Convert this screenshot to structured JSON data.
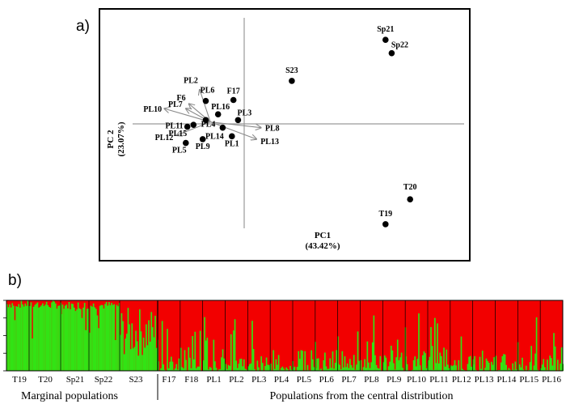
{
  "panel_a_label": "a)",
  "panel_b_label": "b)",
  "chart_data": [
    {
      "type": "scatter",
      "title": "",
      "xlabel": "PC1",
      "xlabel_pct": "(43.42%)",
      "ylabel": "PC 2",
      "ylabel_pct": "(23.07%)",
      "xlim": [
        -1.0,
        1.0
      ],
      "ylim": [
        -1.0,
        1.0
      ],
      "grid": false,
      "points": [
        {
          "label": "Sp21",
          "x": 0.92,
          "y": 0.88
        },
        {
          "label": "Sp22",
          "x": 0.96,
          "y": 0.74
        },
        {
          "label": "S23",
          "x": 0.31,
          "y": 0.45
        },
        {
          "label": "F17",
          "x": -0.07,
          "y": 0.25
        },
        {
          "label": "PL6",
          "x": -0.25,
          "y": 0.24
        },
        {
          "label": "PL16",
          "x": -0.17,
          "y": 0.1
        },
        {
          "label": "PL3",
          "x": -0.04,
          "y": 0.04
        },
        {
          "label": "PL4",
          "x": -0.25,
          "y": 0.04
        },
        {
          "label": "PL14",
          "x": -0.14,
          "y": -0.04
        },
        {
          "label": "PL1",
          "x": -0.08,
          "y": -0.13
        },
        {
          "label": "PL9",
          "x": -0.27,
          "y": -0.16
        },
        {
          "label": "PL5",
          "x": -0.38,
          "y": -0.2
        },
        {
          "label": "PL11",
          "x": -0.37,
          "y": -0.03
        },
        {
          "label": "PL15",
          "x": -0.33,
          "y": -0.01
        },
        {
          "label": "T20",
          "x": 1.08,
          "y": -0.79
        },
        {
          "label": "T19",
          "x": 0.92,
          "y": -1.05
        }
      ],
      "vectors": [
        {
          "label": "PL2",
          "x": -0.29,
          "y": 0.36
        },
        {
          "label": "F6",
          "x": -0.36,
          "y": 0.21
        },
        {
          "label": "PL7",
          "x": -0.38,
          "y": 0.16
        },
        {
          "label": "PL10",
          "x": -0.52,
          "y": 0.16
        },
        {
          "label": "PL12",
          "x": -0.44,
          "y": -0.12
        },
        {
          "label": "PL8",
          "x": 0.11,
          "y": -0.04
        },
        {
          "label": "PL13",
          "x": 0.08,
          "y": -0.16
        }
      ]
    },
    {
      "type": "bar",
      "title": "",
      "xlabel": "",
      "ylabel": "",
      "stacked": true,
      "ylim": [
        0,
        1
      ],
      "colors": {
        "cluster_1": "#32e314",
        "cluster_2": "#f20000"
      },
      "population_labels": [
        "T19",
        "T20",
        "Sp21",
        "Sp22",
        "S23",
        "F17",
        "F18",
        "PL1",
        "PL2",
        "PL3",
        "PL4",
        "PL5",
        "PL6",
        "PL7",
        "PL8",
        "PL9",
        "PL10",
        "PL11",
        "PL12",
        "PL13",
        "PL14",
        "PL15",
        "PL16"
      ],
      "groups": [
        {
          "label": "Marginal populations",
          "populations": [
            "T19",
            "T20",
            "Sp21",
            "Sp22",
            "S23"
          ]
        },
        {
          "label": "Populations from the central distribution",
          "populations": [
            "F17",
            "F18",
            "PL1",
            "PL2",
            "PL3",
            "PL4",
            "PL5",
            "PL6",
            "PL7",
            "PL8",
            "PL9",
            "PL10",
            "PL11",
            "PL12",
            "PL13",
            "PL14",
            "PL15",
            "PL16"
          ]
        }
      ],
      "population_mean_cluster_1": [
        0.95,
        0.94,
        0.93,
        0.93,
        0.55,
        0.12,
        0.16,
        0.17,
        0.16,
        0.14,
        0.12,
        0.15,
        0.15,
        0.17,
        0.15,
        0.12,
        0.14,
        0.16,
        0.12,
        0.13,
        0.15,
        0.16,
        0.17
      ]
    }
  ]
}
